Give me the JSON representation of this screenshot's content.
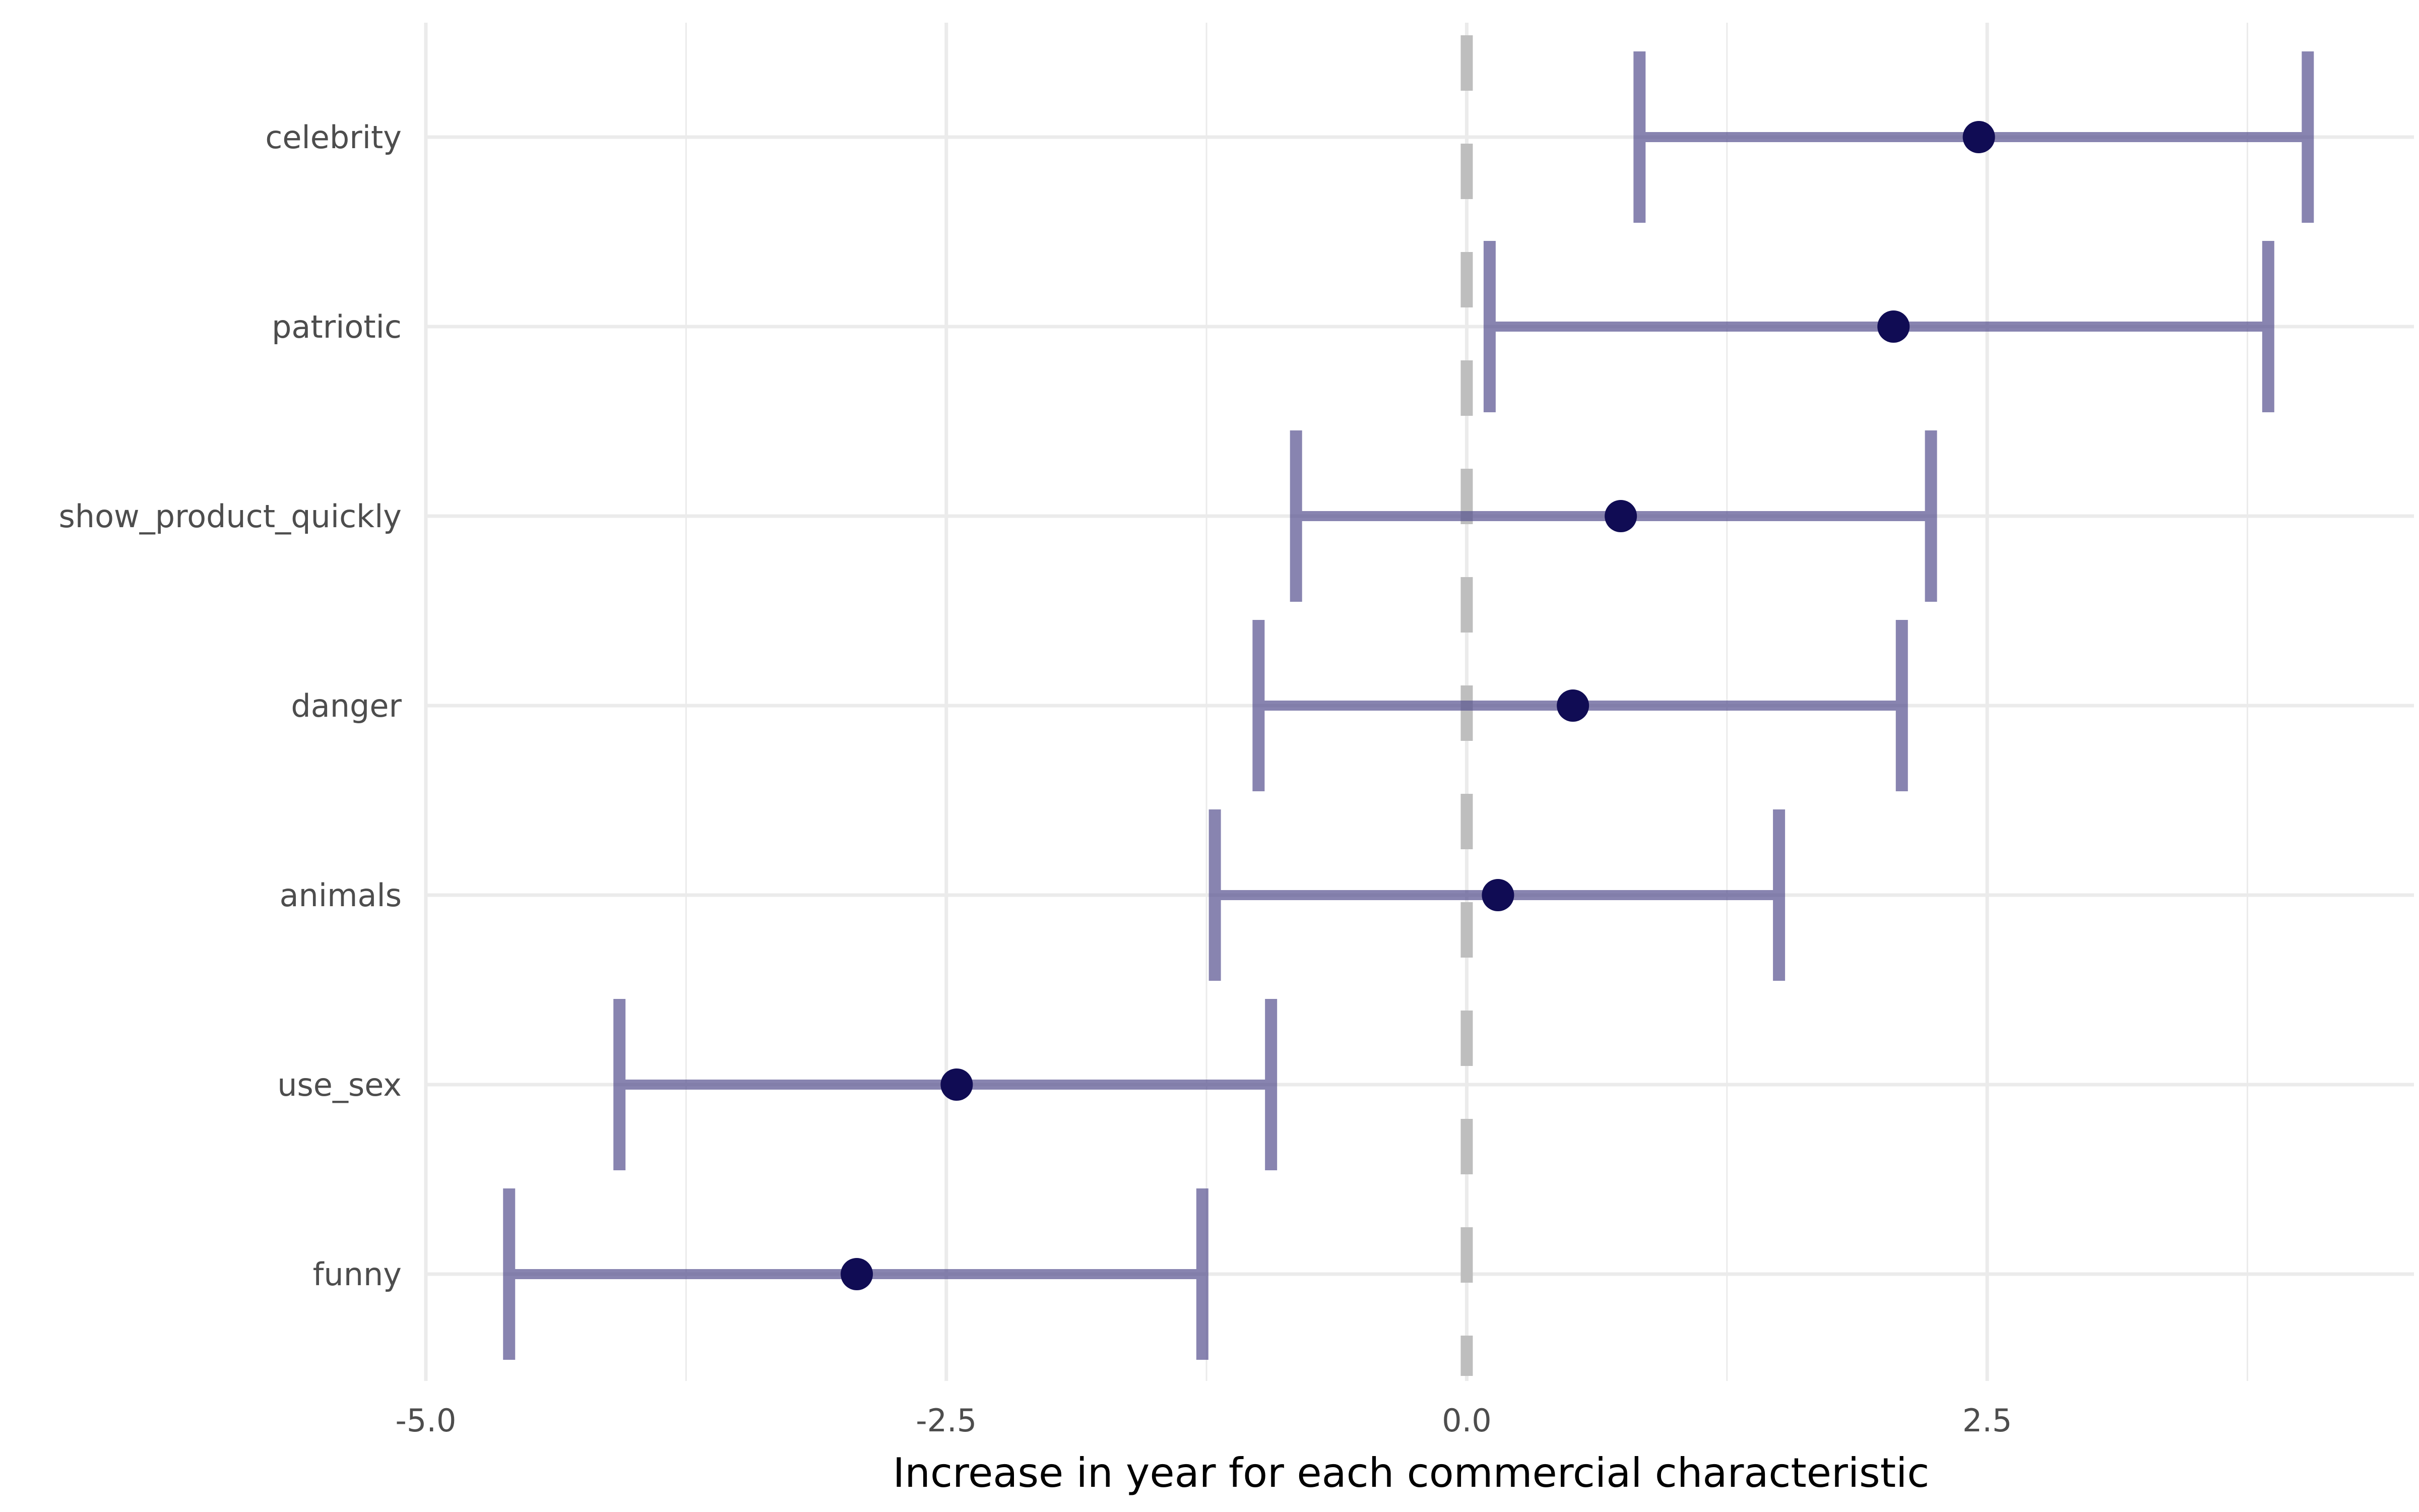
{
  "chart_data": {
    "type": "errorbar",
    "xlabel": "Increase in year for each commercial characteristic",
    "ylabel": "",
    "xlim": [
      -5.0,
      4.55
    ],
    "x_ticks": [
      -5.0,
      -2.5,
      0.0,
      2.5
    ],
    "x_tick_labels": [
      "-5.0",
      "-2.5",
      "0.0",
      "2.5"
    ],
    "x_minor_ticks": [
      -3.75,
      -1.25,
      1.25,
      3.75
    ],
    "reference_line": {
      "x": 0,
      "style": "dashed",
      "color": "#bebebe"
    },
    "grid": true,
    "legend": "none",
    "colors": {
      "point": "#100c54",
      "interval": "#56518f",
      "grid": "#ebebeb"
    },
    "categories": [
      "celebrity",
      "patriotic",
      "show_product_quickly",
      "danger",
      "animals",
      "use_sex",
      "funny"
    ],
    "estimates": [
      2.46,
      2.05,
      0.74,
      0.51,
      0.15,
      -2.45,
      -2.93
    ],
    "lower": [
      0.83,
      0.11,
      -0.82,
      -1.0,
      -1.21,
      -4.07,
      -4.6
    ],
    "upper": [
      4.04,
      3.85,
      2.23,
      2.09,
      1.5,
      -0.94,
      -1.27
    ]
  }
}
